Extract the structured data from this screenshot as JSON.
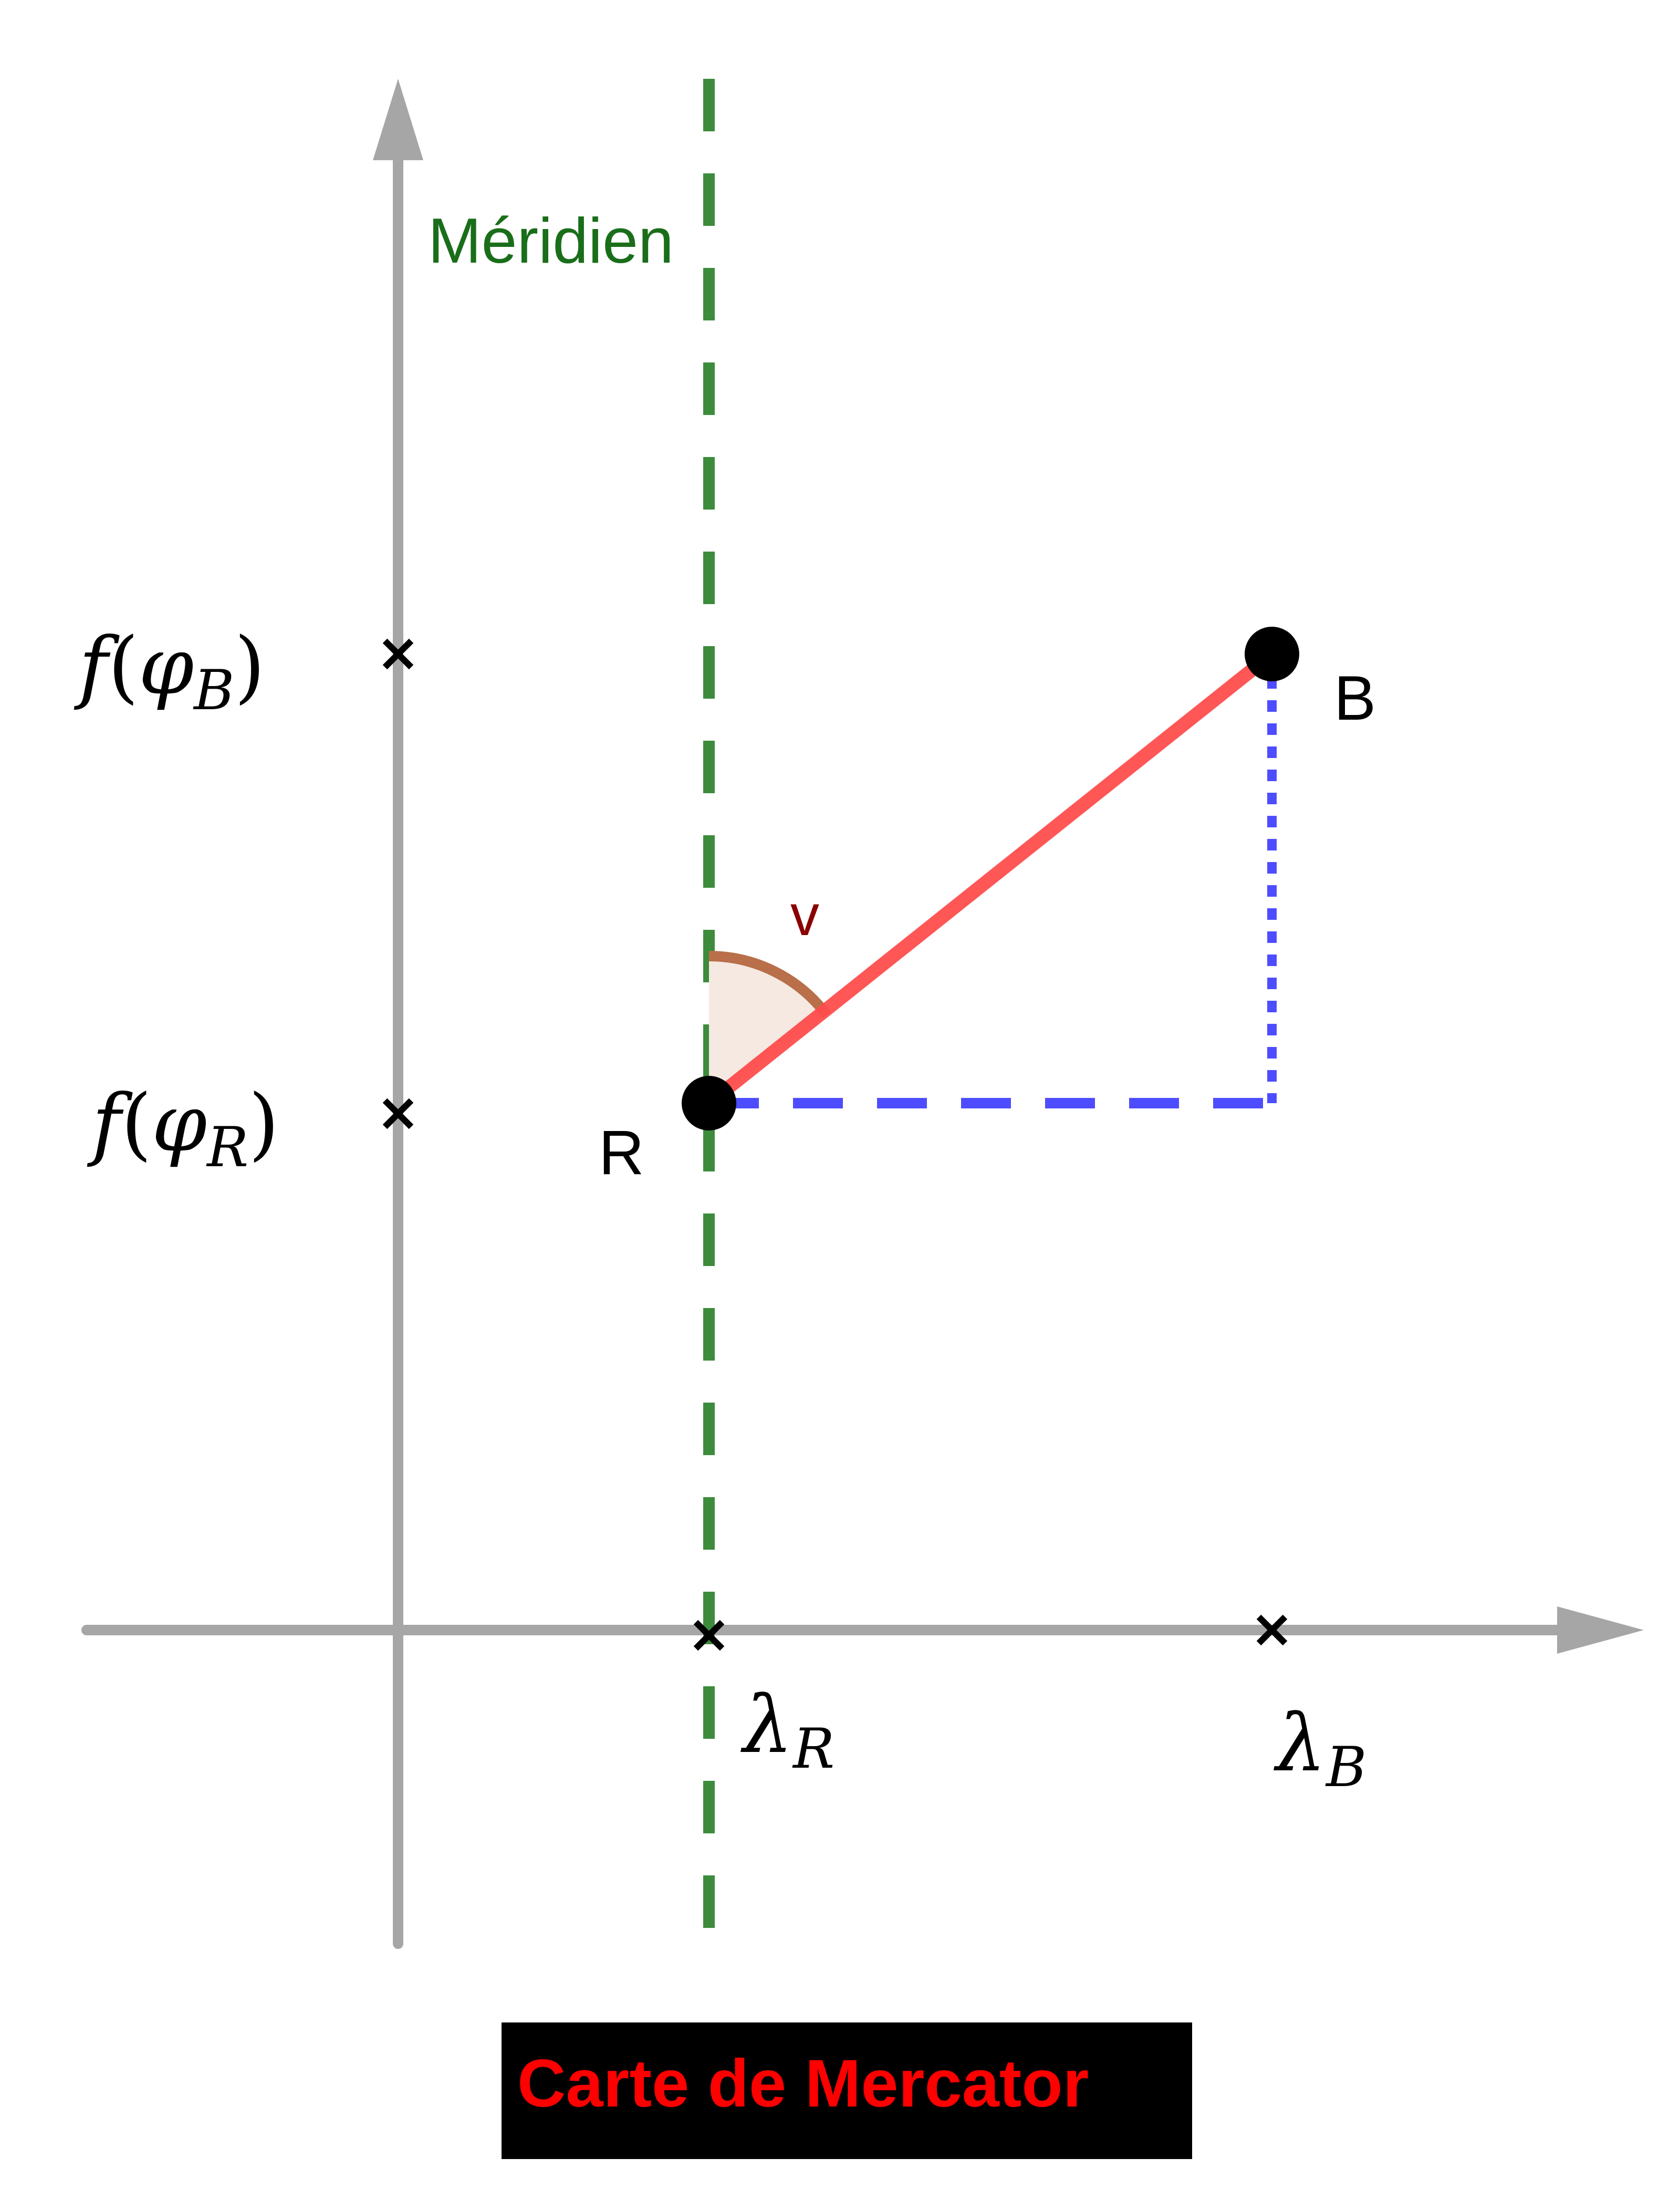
{
  "diagram": {
    "caption": "Carte de Mercator",
    "meridian_label": "Méridien",
    "angle_label": "v",
    "points": {
      "R": {
        "label": "R"
      },
      "B": {
        "label": "B"
      }
    },
    "y_axis_ticks": [
      {
        "func": "f",
        "open": "(",
        "symbol": "φ",
        "sub": "B",
        "close": ")"
      },
      {
        "func": "f",
        "open": "(",
        "symbol": "φ",
        "sub": "R",
        "close": ")"
      }
    ],
    "x_axis_ticks": [
      {
        "symbol": "λ",
        "sub": "R"
      },
      {
        "symbol": "λ",
        "sub": "B"
      }
    ]
  },
  "colors": {
    "axis": "#a6a6a6",
    "meridian": "#3c8c3c",
    "meridian_text": "#1a6e1a",
    "rhumb_line": "#ff4d4d",
    "projection": "#4d4dff",
    "angle_stroke": "#b86f4a",
    "angle_fill": "#f5e9e2",
    "angle_text": "#8b0000",
    "point": "#000000",
    "caption_bg": "#000000",
    "caption_text": "#ff0000"
  }
}
